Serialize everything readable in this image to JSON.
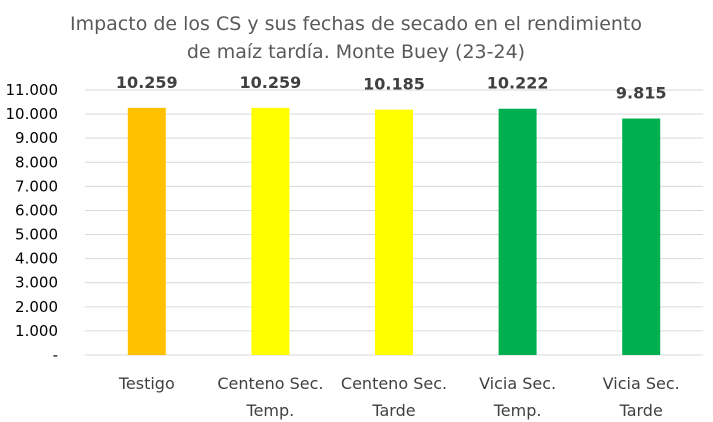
{
  "chart_data": {
    "type": "bar",
    "title": [
      "Impacto de los CS y sus fechas de secado en el rendimiento",
      "de maíz tardía. Monte Buey (23-24)"
    ],
    "xlabel": "",
    "ylabel": "",
    "categories": [
      [
        "Testigo"
      ],
      [
        "Centeno Sec.",
        "Temp."
      ],
      [
        "Centeno Sec.",
        "Tarde"
      ],
      [
        "Vicia Sec.",
        "Temp."
      ],
      [
        "Vicia Sec.",
        "Tarde"
      ]
    ],
    "values": [
      10259,
      10259,
      10185,
      10222,
      9815
    ],
    "data_labels": [
      "10.259",
      "10.259",
      "10.185",
      "10.222",
      "9.815"
    ],
    "bar_colors": [
      "#ffc000",
      "#ffff00",
      "#ffff00",
      "#00b050",
      "#00b050"
    ],
    "ylim": [
      0,
      11000
    ],
    "yticks": [
      0,
      1000,
      2000,
      3000,
      4000,
      5000,
      6000,
      7000,
      8000,
      9000,
      10000,
      11000
    ],
    "ytick_labels": [
      "-",
      "1.000",
      "2.000",
      "3.000",
      "4.000",
      "5.000",
      "6.000",
      "7.000",
      "8.000",
      "9.000",
      "10.000",
      "11.000"
    ],
    "grid": true,
    "legend": "none"
  }
}
